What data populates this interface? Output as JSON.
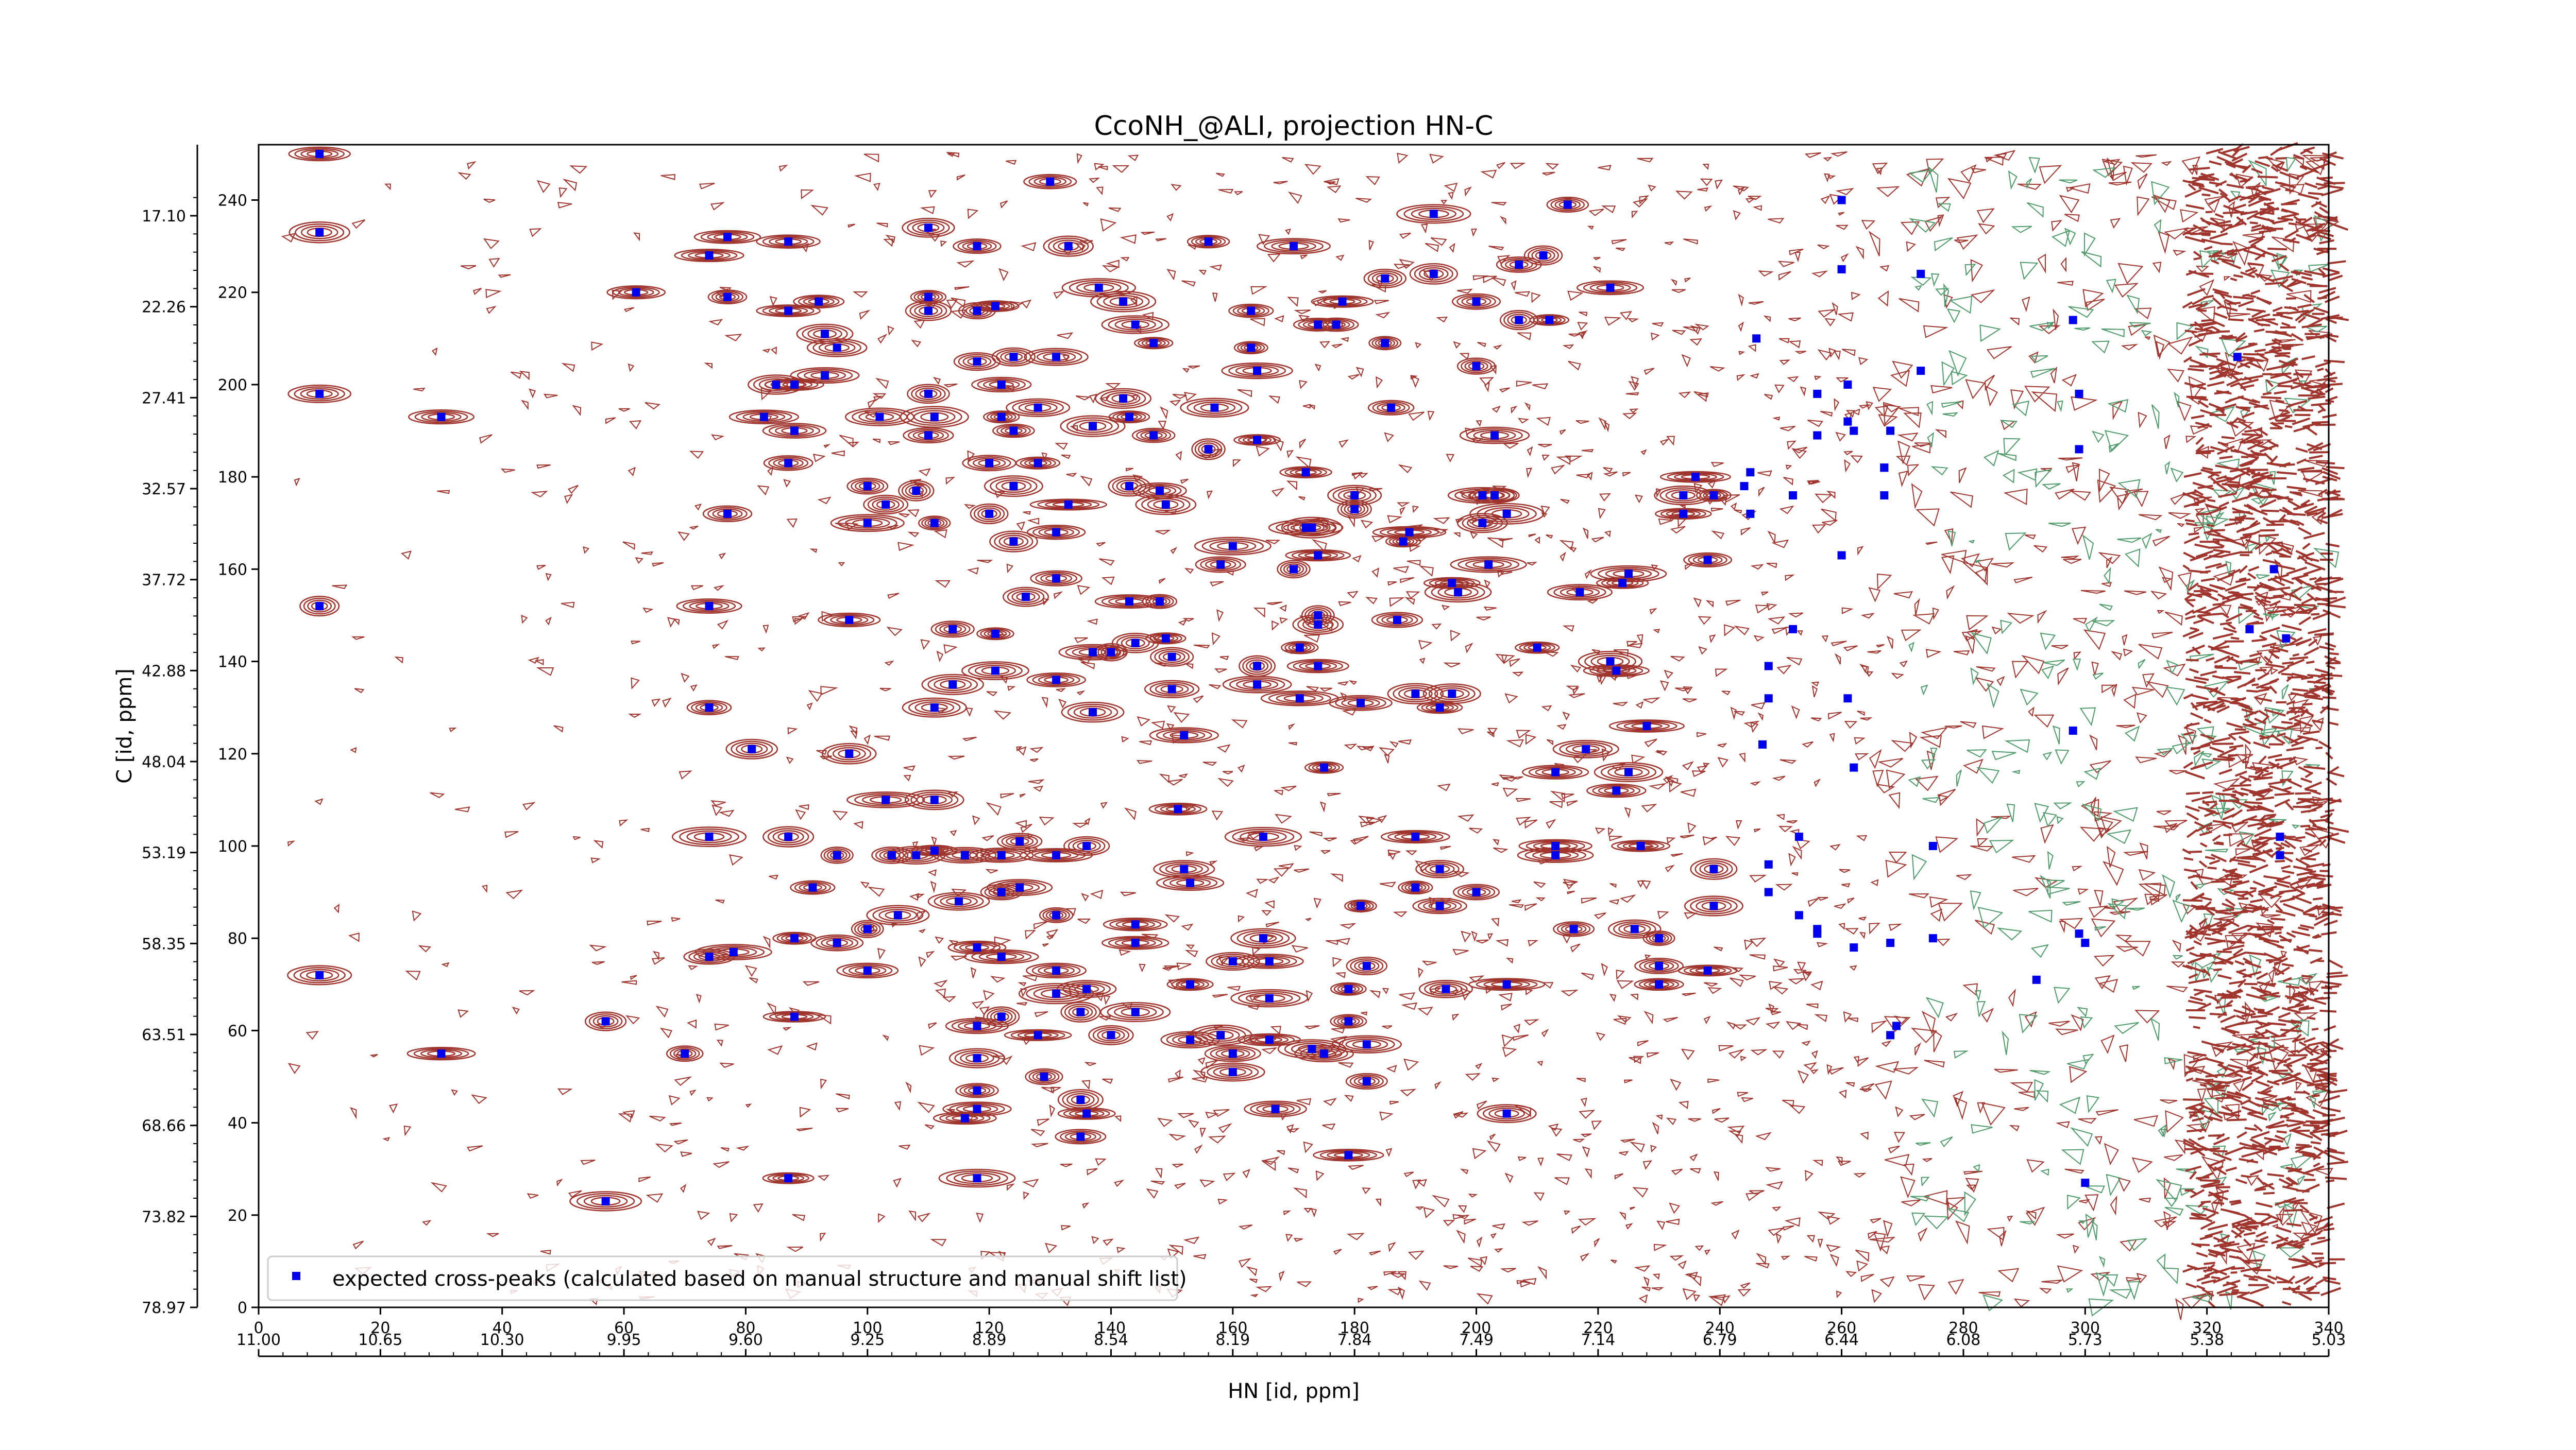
{
  "chart_data": {
    "type": "scatter",
    "title": "CcoNH_@ALI, projection HN-C",
    "xlabel_bottom": "HN [id, ppm]",
    "ylabel_left": "C [id, ppm]",
    "x_index_ticks": [
      "0",
      "20",
      "40",
      "60",
      "80",
      "100",
      "120",
      "140",
      "160",
      "180",
      "200",
      "220",
      "240",
      "260",
      "280",
      "300",
      "320",
      "340"
    ],
    "y_index_ticks": [
      "0",
      "20",
      "40",
      "60",
      "80",
      "100",
      "120",
      "140",
      "160",
      "180",
      "200",
      "220",
      "240"
    ],
    "x_ppm_ticks": [
      "11.00",
      "10.65",
      "10.30",
      "9.95",
      "9.60",
      "9.25",
      "8.89",
      "8.54",
      "8.19",
      "7.84",
      "7.49",
      "7.14",
      "6.79",
      "6.44",
      "6.08",
      "5.73",
      "5.38",
      "5.03"
    ],
    "y_ppm_ticks": [
      "78.97",
      "73.82",
      "68.66",
      "63.51",
      "58.35",
      "53.19",
      "48.04",
      "42.88",
      "37.72",
      "32.57",
      "27.41",
      "22.26",
      "17.10"
    ],
    "xlim": [
      0,
      340
    ],
    "ylim": [
      0,
      252
    ],
    "legend": {
      "label": "expected cross-peaks (calculated based on manual structure and manual shift list)",
      "position": "lower-left"
    },
    "contour_colors": {
      "positive": "#a0352e",
      "negative": "#4f9a6a"
    },
    "series": [
      {
        "name": "expected cross-peaks (calculated based on manual structure and manual shift list)",
        "color": "#0000ee",
        "marker": "square",
        "points": [
          [
            10,
            250
          ],
          [
            10,
            233
          ],
          [
            10,
            198
          ],
          [
            10,
            152
          ],
          [
            10,
            72
          ],
          [
            30,
            193
          ],
          [
            30,
            55
          ],
          [
            62,
            220
          ],
          [
            57,
            62
          ],
          [
            57,
            23
          ],
          [
            70,
            55
          ],
          [
            74,
            152
          ],
          [
            74,
            130
          ],
          [
            74,
            102
          ],
          [
            74,
            76
          ],
          [
            74,
            228
          ],
          [
            77,
            219
          ],
          [
            77,
            172
          ],
          [
            78,
            77
          ],
          [
            77,
            232
          ],
          [
            81,
            121
          ],
          [
            83,
            193
          ],
          [
            85,
            200
          ],
          [
            87,
            216
          ],
          [
            88,
            200
          ],
          [
            88,
            190
          ],
          [
            87,
            231
          ],
          [
            87,
            183
          ],
          [
            87,
            102
          ],
          [
            87,
            28
          ],
          [
            88,
            80
          ],
          [
            88,
            63
          ],
          [
            91,
            91
          ],
          [
            92,
            218
          ],
          [
            93,
            202
          ],
          [
            93,
            211
          ],
          [
            95,
            208
          ],
          [
            95,
            98
          ],
          [
            95,
            79
          ],
          [
            97,
            149
          ],
          [
            97,
            120
          ],
          [
            100,
            178
          ],
          [
            100,
            170
          ],
          [
            100,
            82
          ],
          [
            100,
            73
          ],
          [
            102,
            193
          ],
          [
            103,
            174
          ],
          [
            103,
            110
          ],
          [
            104,
            98
          ],
          [
            105,
            85
          ],
          [
            108,
            98
          ],
          [
            108,
            177
          ],
          [
            110,
            219
          ],
          [
            110,
            234
          ],
          [
            110,
            216
          ],
          [
            110,
            198
          ],
          [
            110,
            189
          ],
          [
            111,
            170
          ],
          [
            111,
            130
          ],
          [
            111,
            193
          ],
          [
            111,
            110
          ],
          [
            111,
            99
          ],
          [
            114,
            147
          ],
          [
            115,
            88
          ],
          [
            116,
            98
          ],
          [
            114,
            135
          ],
          [
            116,
            41
          ],
          [
            118,
            78
          ],
          [
            118,
            61
          ],
          [
            118,
            205
          ],
          [
            118,
            230
          ],
          [
            118,
            47
          ],
          [
            118,
            216
          ],
          [
            118,
            28
          ],
          [
            118,
            54
          ],
          [
            118,
            43
          ],
          [
            120,
            183
          ],
          [
            120,
            172
          ],
          [
            121,
            217
          ],
          [
            122,
            200
          ],
          [
            122,
            193
          ],
          [
            121,
            146
          ],
          [
            121,
            138
          ],
          [
            122,
            98
          ],
          [
            122,
            90
          ],
          [
            122,
            76
          ],
          [
            122,
            63
          ],
          [
            124,
            166
          ],
          [
            124,
            190
          ],
          [
            124,
            178
          ],
          [
            124,
            206
          ],
          [
            126,
            154
          ],
          [
            125,
            101
          ],
          [
            125,
            91
          ],
          [
            128,
            195
          ],
          [
            128,
            183
          ],
          [
            128,
            59
          ],
          [
            129,
            50
          ],
          [
            130,
            244
          ],
          [
            131,
            206
          ],
          [
            131,
            168
          ],
          [
            131,
            158
          ],
          [
            131,
            136
          ],
          [
            131,
            68
          ],
          [
            131,
            73
          ],
          [
            131,
            98
          ],
          [
            131,
            85
          ],
          [
            133,
            230
          ],
          [
            133,
            174
          ],
          [
            135,
            37
          ],
          [
            135,
            64
          ],
          [
            135,
            45
          ],
          [
            137,
            191
          ],
          [
            137,
            142
          ],
          [
            137,
            129
          ],
          [
            136,
            100
          ],
          [
            136,
            69
          ],
          [
            136,
            42
          ],
          [
            138,
            221
          ],
          [
            140,
            142
          ],
          [
            140,
            59
          ],
          [
            142,
            218
          ],
          [
            142,
            197
          ],
          [
            143,
            193
          ],
          [
            143,
            178
          ],
          [
            143,
            153
          ],
          [
            144,
            144
          ],
          [
            144,
            213
          ],
          [
            144,
            83
          ],
          [
            144,
            64
          ],
          [
            144,
            79
          ],
          [
            147,
            209
          ],
          [
            147,
            189
          ],
          [
            148,
            177
          ],
          [
            148,
            153
          ],
          [
            149,
            174
          ],
          [
            149,
            145
          ],
          [
            150,
            141
          ],
          [
            150,
            134
          ],
          [
            151,
            108
          ],
          [
            152,
            124
          ],
          [
            152,
            95
          ],
          [
            153,
            70
          ],
          [
            153,
            58
          ],
          [
            153,
            92
          ],
          [
            156,
            186
          ],
          [
            157,
            195
          ],
          [
            156,
            231
          ],
          [
            158,
            59
          ],
          [
            158,
            161
          ],
          [
            160,
            165
          ],
          [
            160,
            75
          ],
          [
            160,
            55
          ],
          [
            160,
            51
          ],
          [
            163,
            216
          ],
          [
            163,
            208
          ],
          [
            164,
            203
          ],
          [
            164,
            188
          ],
          [
            164,
            139
          ],
          [
            164,
            135
          ],
          [
            165,
            102
          ],
          [
            165,
            80
          ],
          [
            166,
            67
          ],
          [
            166,
            58
          ],
          [
            166,
            75
          ],
          [
            167,
            43
          ],
          [
            170,
            230
          ],
          [
            170,
            160
          ],
          [
            171,
            143
          ],
          [
            171,
            132
          ],
          [
            172,
            181
          ],
          [
            172,
            169
          ],
          [
            173,
            169
          ],
          [
            173,
            56
          ],
          [
            174,
            213
          ],
          [
            174,
            163
          ],
          [
            174,
            150
          ],
          [
            174,
            148
          ],
          [
            174,
            139
          ],
          [
            175,
            117
          ],
          [
            175,
            55
          ],
          [
            178,
            218
          ],
          [
            177,
            213
          ],
          [
            179,
            69
          ],
          [
            179,
            62
          ],
          [
            179,
            33
          ],
          [
            180,
            176
          ],
          [
            180,
            173
          ],
          [
            181,
            131
          ],
          [
            181,
            87
          ],
          [
            182,
            74
          ],
          [
            182,
            57
          ],
          [
            182,
            49
          ],
          [
            185,
            223
          ],
          [
            185,
            209
          ],
          [
            186,
            195
          ],
          [
            187,
            149
          ],
          [
            188,
            166
          ],
          [
            189,
            168
          ],
          [
            190,
            133
          ],
          [
            190,
            102
          ],
          [
            190,
            91
          ],
          [
            193,
            237
          ],
          [
            193,
            224
          ],
          [
            194,
            130
          ],
          [
            194,
            95
          ],
          [
            194,
            87
          ],
          [
            195,
            69
          ],
          [
            196,
            157
          ],
          [
            196,
            133
          ],
          [
            197,
            155
          ],
          [
            200,
            218
          ],
          [
            200,
            204
          ],
          [
            200,
            90
          ],
          [
            201,
            176
          ],
          [
            201,
            170
          ],
          [
            202,
            161
          ],
          [
            203,
            176
          ],
          [
            203,
            189
          ],
          [
            205,
            172
          ],
          [
            205,
            70
          ],
          [
            205,
            42
          ],
          [
            207,
            226
          ],
          [
            207,
            214
          ],
          [
            210,
            143
          ],
          [
            211,
            228
          ],
          [
            212,
            214
          ],
          [
            213,
            116
          ],
          [
            213,
            100
          ],
          [
            213,
            98
          ],
          [
            215,
            239
          ],
          [
            216,
            82
          ],
          [
            217,
            155
          ],
          [
            218,
            121
          ],
          [
            222,
            140
          ],
          [
            222,
            221
          ],
          [
            223,
            138
          ],
          [
            223,
            112
          ],
          [
            224,
            157
          ],
          [
            225,
            159
          ],
          [
            225,
            116
          ],
          [
            226,
            82
          ],
          [
            227,
            100
          ],
          [
            228,
            126
          ],
          [
            230,
            80
          ],
          [
            230,
            70
          ],
          [
            230,
            74
          ],
          [
            234,
            176
          ],
          [
            234,
            172
          ],
          [
            236,
            180
          ],
          [
            238,
            73
          ],
          [
            238,
            162
          ],
          [
            239,
            176
          ],
          [
            239,
            95
          ],
          [
            239,
            87
          ],
          [
            244,
            178
          ],
          [
            245,
            172
          ],
          [
            245,
            181
          ],
          [
            246,
            210
          ],
          [
            247,
            122
          ],
          [
            248,
            132
          ],
          [
            248,
            139
          ],
          [
            248,
            96
          ],
          [
            248,
            90
          ],
          [
            252,
            176
          ],
          [
            252,
            147
          ],
          [
            253,
            102
          ],
          [
            253,
            85
          ],
          [
            256,
            198
          ],
          [
            256,
            189
          ],
          [
            256,
            81
          ],
          [
            256,
            82
          ],
          [
            260,
            240
          ],
          [
            260,
            225
          ],
          [
            260,
            163
          ],
          [
            261,
            200
          ],
          [
            261,
            192
          ],
          [
            261,
            132
          ],
          [
            262,
            190
          ],
          [
            262,
            78
          ],
          [
            262,
            117
          ],
          [
            267,
            182
          ],
          [
            267,
            176
          ],
          [
            267,
            182
          ],
          [
            268,
            190
          ],
          [
            268,
            79
          ],
          [
            268,
            59
          ],
          [
            269,
            61
          ],
          [
            273,
            224
          ],
          [
            273,
            203
          ],
          [
            275,
            100
          ],
          [
            275,
            80
          ],
          [
            292,
            71
          ],
          [
            298,
            214
          ],
          [
            298,
            125
          ],
          [
            299,
            198
          ],
          [
            299,
            186
          ],
          [
            299,
            81
          ],
          [
            300,
            79
          ],
          [
            300,
            27
          ],
          [
            325,
            206
          ],
          [
            327,
            147
          ],
          [
            331,
            160
          ],
          [
            332,
            102
          ],
          [
            332,
            98
          ],
          [
            333,
            145
          ]
        ]
      }
    ],
    "grid": false
  }
}
